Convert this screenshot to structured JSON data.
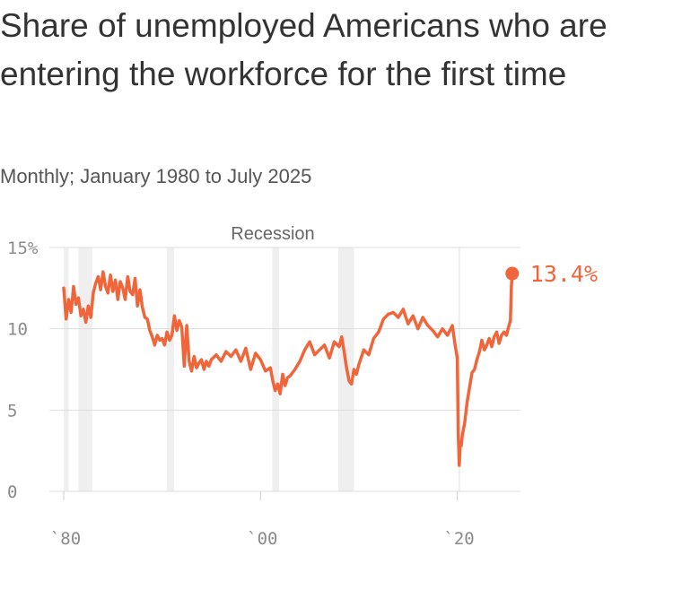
{
  "title": "Share of unemployed Americans who are entering the workforce for the first time",
  "subtitle": "Monthly; January 1980 to July 2025",
  "chart_data": {
    "type": "line",
    "ylim": [
      0,
      15
    ],
    "xlim": [
      1980.0,
      2025.6
    ],
    "y_ticks": [
      "15%",
      "10",
      "5",
      "0"
    ],
    "y_tick_values": [
      15,
      10,
      5,
      0
    ],
    "x_ticks": [
      "`80",
      "`00",
      "`20"
    ],
    "x_tick_values": [
      1980,
      2000,
      2020
    ],
    "grid": true,
    "color": "#f0653a",
    "recession_color": "#efefef",
    "recession_label": "Recession",
    "recessions": [
      [
        1980.0,
        1980.5
      ],
      [
        1981.5,
        1982.9
      ],
      [
        1990.5,
        1991.2
      ],
      [
        2001.2,
        2001.9
      ],
      [
        2007.9,
        2009.5
      ],
      [
        2020.1,
        2020.3
      ]
    ],
    "end_label": "13.4%",
    "series": [
      {
        "x": [
          1980.0,
          1980.25,
          1980.5,
          1980.75,
          1981.0,
          1981.25,
          1981.5,
          1981.75,
          1982.0,
          1982.25,
          1982.5,
          1982.75,
          1983.0,
          1983.25,
          1983.5,
          1983.75,
          1984.0,
          1984.25,
          1984.5,
          1984.75,
          1985.0,
          1985.25,
          1985.5,
          1985.75,
          1986.0,
          1986.25,
          1986.5,
          1986.75,
          1987.0,
          1987.25,
          1987.5,
          1987.75,
          1988.0,
          1988.25,
          1988.5,
          1988.75,
          1989.0,
          1989.25,
          1989.5,
          1989.75,
          1990.0,
          1990.25,
          1990.5,
          1990.75,
          1991.0,
          1991.25,
          1991.5,
          1991.75,
          1992.0,
          1992.25,
          1992.5,
          1992.75,
          1993.0,
          1993.25,
          1993.5,
          1993.75,
          1994.0,
          1994.25,
          1994.5,
          1994.75,
          1995.0,
          1995.5,
          1996.0,
          1996.5,
          1997.0,
          1997.5,
          1998.0,
          1998.5,
          1999.0,
          1999.5,
          2000.0,
          2000.5,
          2001.0,
          2001.25,
          2001.5,
          2001.75,
          2002.0,
          2002.25,
          2002.5,
          2002.75,
          2003.0,
          2003.5,
          2004.0,
          2004.5,
          2005.0,
          2005.5,
          2006.0,
          2006.5,
          2007.0,
          2007.5,
          2008.0,
          2008.25,
          2008.5,
          2008.75,
          2009.0,
          2009.25,
          2009.5,
          2009.75,
          2010.0,
          2010.5,
          2011.0,
          2011.5,
          2012.0,
          2012.5,
          2013.0,
          2013.5,
          2014.0,
          2014.5,
          2015.0,
          2015.5,
          2016.0,
          2016.5,
          2017.0,
          2017.5,
          2018.0,
          2018.5,
          2019.0,
          2019.5,
          2019.75,
          2020.0,
          2020.1,
          2020.2,
          2020.3,
          2020.4,
          2020.5,
          2020.75,
          2021.0,
          2021.25,
          2021.5,
          2021.75,
          2022.0,
          2022.25,
          2022.5,
          2022.75,
          2023.0,
          2023.25,
          2023.5,
          2023.75,
          2024.0,
          2024.25,
          2024.5,
          2024.75,
          2025.0,
          2025.25,
          2025.4,
          2025.5,
          2025.58
        ],
        "values": [
          12.5,
          10.6,
          11.8,
          11.0,
          12.6,
          11.5,
          11.9,
          10.8,
          11.2,
          10.4,
          11.4,
          10.7,
          12.2,
          12.8,
          13.2,
          12.4,
          13.5,
          12.6,
          12.2,
          13.3,
          12.3,
          13.0,
          11.8,
          12.9,
          12.5,
          11.8,
          13.2,
          12.3,
          12.1,
          13.1,
          11.4,
          12.4,
          11.3,
          10.7,
          10.6,
          9.9,
          9.5,
          9.0,
          9.6,
          9.3,
          9.4,
          9.0,
          9.8,
          9.3,
          9.6,
          10.8,
          9.9,
          10.5,
          10.1,
          7.7,
          10.2,
          8.0,
          7.4,
          8.3,
          7.6,
          7.9,
          8.1,
          7.5,
          8.0,
          7.7,
          8.1,
          8.4,
          8.0,
          8.6,
          8.3,
          8.7,
          8.0,
          8.8,
          7.5,
          8.5,
          8.1,
          7.4,
          7.6,
          6.8,
          6.2,
          6.6,
          6.0,
          7.2,
          6.5,
          7.0,
          7.1,
          7.5,
          8.0,
          8.7,
          9.2,
          8.4,
          8.7,
          9.0,
          8.2,
          9.2,
          8.9,
          9.5,
          8.6,
          7.6,
          6.8,
          6.6,
          7.5,
          7.2,
          7.8,
          8.7,
          8.4,
          9.4,
          9.8,
          10.6,
          10.9,
          11.0,
          10.7,
          11.2,
          10.3,
          10.8,
          10.0,
          10.7,
          10.2,
          9.9,
          9.5,
          10.0,
          9.6,
          10.2,
          9.1,
          8.2,
          3.5,
          1.6,
          3.0,
          2.8,
          3.4,
          4.2,
          5.5,
          6.4,
          7.3,
          7.5,
          8.1,
          8.6,
          9.3,
          8.7,
          9.0,
          9.4,
          8.9,
          9.5,
          9.8,
          9.1,
          9.6,
          9.8,
          9.6,
          10.2,
          10.5,
          12.6,
          13.4
        ]
      }
    ]
  }
}
